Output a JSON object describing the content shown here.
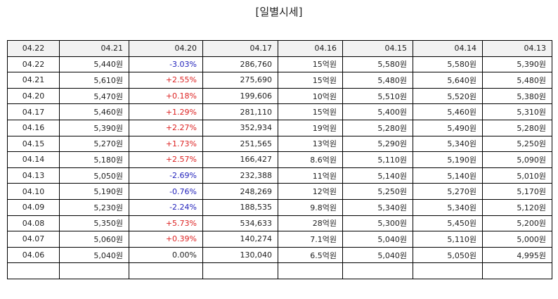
{
  "title": "[일별시세]",
  "header": [
    "04.22",
    "04.21",
    "04.20",
    "04.17",
    "04.16",
    "04.15",
    "04.14",
    "04.13"
  ],
  "rows": [
    {
      "date": "04.22",
      "close": "5,440원",
      "change": "-3.03%",
      "dir": "down",
      "volume": "286,760",
      "amount": "15억원",
      "open": "5,580원",
      "high": "5,580원",
      "low": "5,390원"
    },
    {
      "date": "04.21",
      "close": "5,610원",
      "change": "+2.55%",
      "dir": "up",
      "volume": "275,690",
      "amount": "15억원",
      "open": "5,480원",
      "high": "5,640원",
      "low": "5,480원"
    },
    {
      "date": "04.20",
      "close": "5,470원",
      "change": "+0.18%",
      "dir": "up",
      "volume": "199,606",
      "amount": "10억원",
      "open": "5,510원",
      "high": "5,520원",
      "low": "5,380원"
    },
    {
      "date": "04.17",
      "close": "5,460원",
      "change": "+1.29%",
      "dir": "up",
      "volume": "281,110",
      "amount": "15억원",
      "open": "5,400원",
      "high": "5,460원",
      "low": "5,310원"
    },
    {
      "date": "04.16",
      "close": "5,390원",
      "change": "+2.27%",
      "dir": "up",
      "volume": "352,934",
      "amount": "19억원",
      "open": "5,280원",
      "high": "5,490원",
      "low": "5,280원"
    },
    {
      "date": "04.15",
      "close": "5,270원",
      "change": "+1.73%",
      "dir": "up",
      "volume": "251,565",
      "amount": "13억원",
      "open": "5,290원",
      "high": "5,340원",
      "low": "5,250원"
    },
    {
      "date": "04.14",
      "close": "5,180원",
      "change": "+2.57%",
      "dir": "up",
      "volume": "166,427",
      "amount": "8.6억원",
      "open": "5,110원",
      "high": "5,190원",
      "low": "5,090원"
    },
    {
      "date": "04.13",
      "close": "5,050원",
      "change": "-2.69%",
      "dir": "down",
      "volume": "232,388",
      "amount": "11억원",
      "open": "5,140원",
      "high": "5,140원",
      "low": "5,010원"
    },
    {
      "date": "04.10",
      "close": "5,190원",
      "change": "-0.76%",
      "dir": "down",
      "volume": "248,269",
      "amount": "12억원",
      "open": "5,250원",
      "high": "5,270원",
      "low": "5,170원"
    },
    {
      "date": "04.09",
      "close": "5,230원",
      "change": "-2.24%",
      "dir": "down",
      "volume": "188,535",
      "amount": "9.8억원",
      "open": "5,340원",
      "high": "5,340원",
      "low": "5,120원"
    },
    {
      "date": "04.08",
      "close": "5,350원",
      "change": "+5.73%",
      "dir": "up",
      "volume": "534,633",
      "amount": "28억원",
      "open": "5,300원",
      "high": "5,450원",
      "low": "5,200원"
    },
    {
      "date": "04.07",
      "close": "5,060원",
      "change": "+0.39%",
      "dir": "up",
      "volume": "140,274",
      "amount": "7.1억원",
      "open": "5,040원",
      "high": "5,110원",
      "low": "5,000원"
    },
    {
      "date": "04.06",
      "close": "5,040원",
      "change": "0.00%",
      "dir": "flat",
      "volume": "130,040",
      "amount": "6.5억원",
      "open": "5,040원",
      "high": "5,050원",
      "low": "4,995원"
    }
  ],
  "colors": {
    "down": "#2222bb",
    "up": "#dd2222",
    "flat": "#222222",
    "header_bg": "#f2f2f2",
    "border": "#000000"
  }
}
